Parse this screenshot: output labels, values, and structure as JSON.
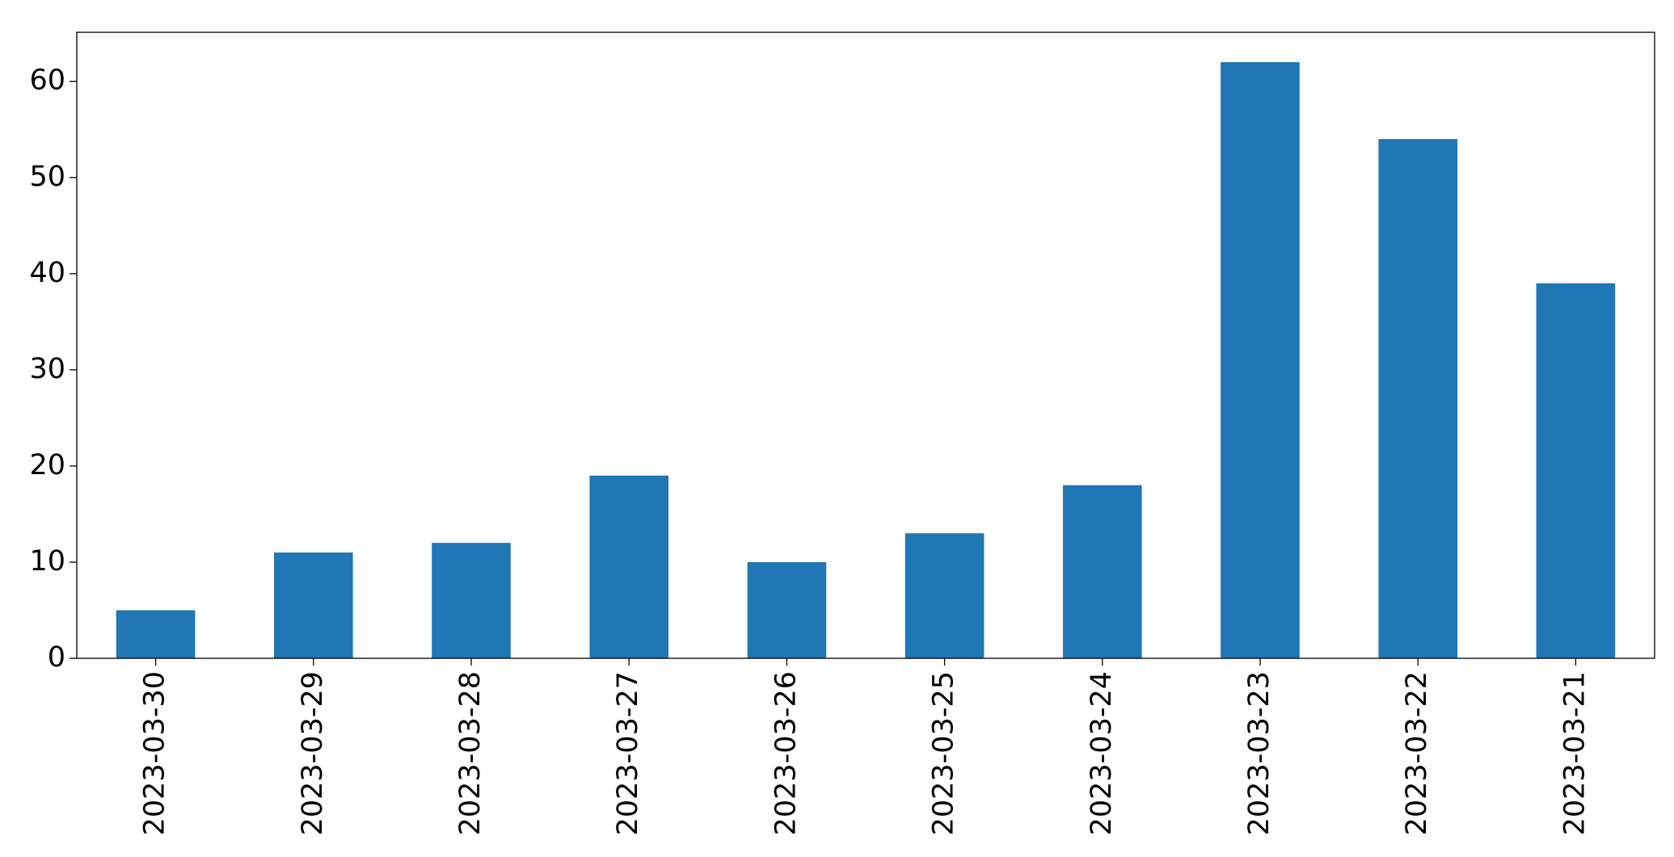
{
  "chart_data": {
    "type": "bar",
    "categories": [
      "2023-03-30",
      "2023-03-29",
      "2023-03-28",
      "2023-03-27",
      "2023-03-26",
      "2023-03-25",
      "2023-03-24",
      "2023-03-23",
      "2023-03-22",
      "2023-03-21"
    ],
    "values": [
      5,
      11,
      12,
      19,
      10,
      13,
      18,
      62,
      54,
      39
    ],
    "color": "#1f77b4",
    "ylim": [
      0,
      65.1
    ],
    "yticks": [
      0,
      10,
      20,
      30,
      40,
      50,
      60
    ],
    "grid": false
  }
}
